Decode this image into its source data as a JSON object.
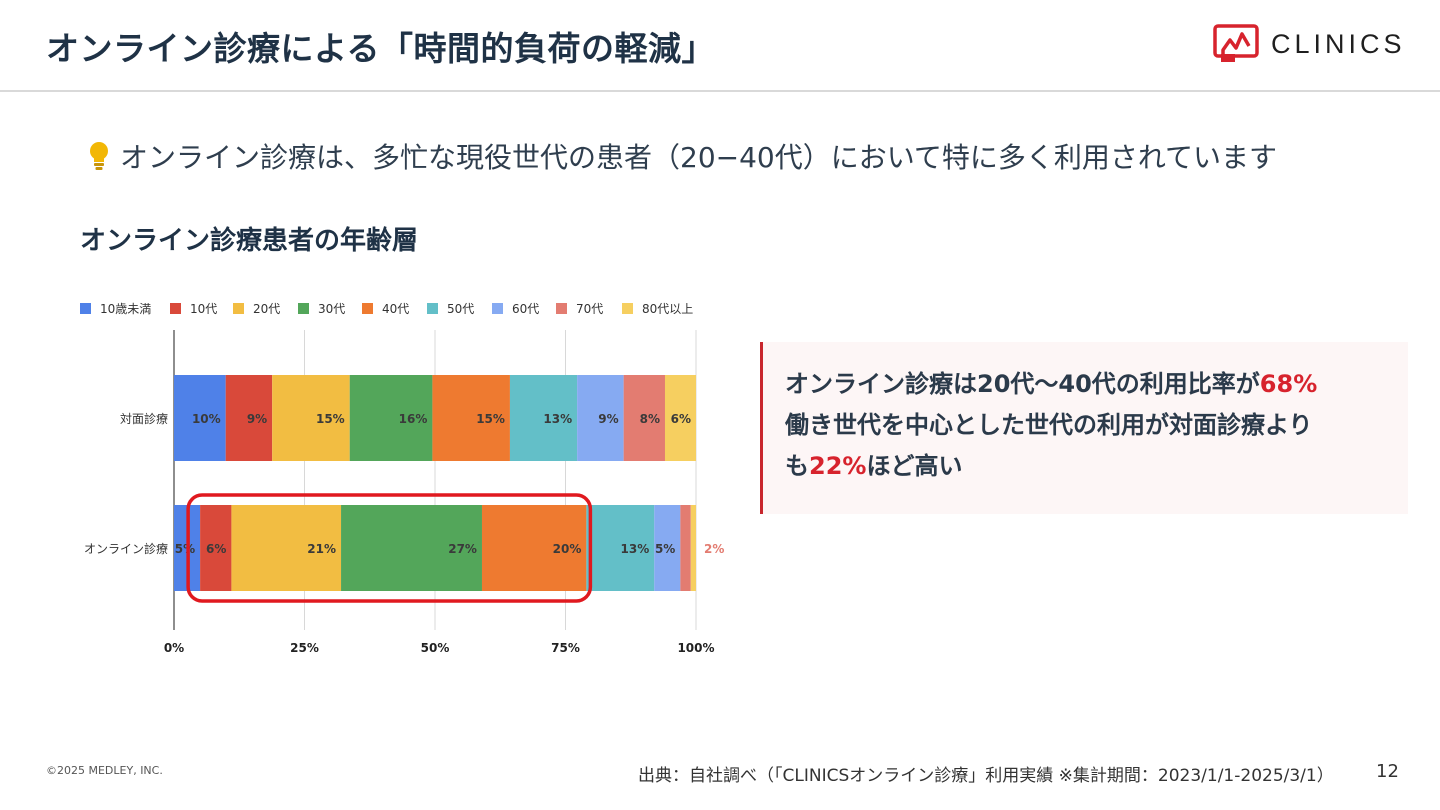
{
  "header": {
    "title": "オンライン診療による「時間的負荷の軽減」",
    "logo_text": "CLINICS",
    "accent_color": "#d7232d"
  },
  "lead": {
    "icon": "lightbulb-icon",
    "text": "オンライン診療は、多忙な現役世代の患者（20−40代）において特に多く利用されています"
  },
  "chart_title": "オンライン診療患者の年齢層",
  "chart_data": {
    "type": "bar",
    "orientation": "horizontal",
    "stacked": true,
    "categories": [
      "対面診療",
      "オンライン診療"
    ],
    "series": [
      {
        "name": "10歳未満",
        "color": "#4f81e8",
        "values": [
          10,
          5
        ],
        "labels": [
          "10%",
          "5%"
        ]
      },
      {
        "name": "10代",
        "color": "#d9493a",
        "values": [
          9,
          6
        ],
        "labels": [
          "9%",
          "6%"
        ]
      },
      {
        "name": "20代",
        "color": "#f2bd42",
        "values": [
          15,
          21
        ],
        "labels": [
          "15%",
          "21%"
        ]
      },
      {
        "name": "30代",
        "color": "#53a65a",
        "values": [
          16,
          27
        ],
        "labels": [
          "16%",
          "27%"
        ]
      },
      {
        "name": "40代",
        "color": "#ee7a30",
        "values": [
          15,
          20
        ],
        "labels": [
          "15%",
          "20%"
        ]
      },
      {
        "name": "50代",
        "color": "#63bfc8",
        "values": [
          13,
          13
        ],
        "labels": [
          "13%",
          "13%"
        ]
      },
      {
        "name": "60代",
        "color": "#86aaf2",
        "values": [
          9,
          5
        ],
        "labels": [
          "9%",
          "5%"
        ]
      },
      {
        "name": "70代",
        "color": "#e37c71",
        "values": [
          8,
          2
        ],
        "labels": [
          "8%",
          ""
        ]
      },
      {
        "name": "80代以上",
        "color": "#f6cf60",
        "values": [
          6,
          1
        ],
        "labels": [
          "6%",
          ""
        ]
      }
    ],
    "outside_labels": [
      "",
      "2%"
    ],
    "x_ticks": [
      "0%",
      "25%",
      "50%",
      "75%",
      "100%"
    ],
    "xlim": [
      0,
      100
    ],
    "legend_position": "top",
    "grid": true,
    "highlight": {
      "category": "オンライン診療",
      "from_series": "10代",
      "to_series": "40代",
      "color": "#e0191f"
    }
  },
  "callout": {
    "line1_prefix": "オンライン診療は20代〜40代の利用比率が",
    "line1_highlight": "68%",
    "line2": "働き世代を中心とした世代の利用が対面診療より",
    "line3_prefix": "も",
    "line3_highlight": "22%",
    "line3_suffix": "ほど高い"
  },
  "footer": {
    "copyright": "©2025 MEDLEY, INC.",
    "source": "出典：自社調べ（「CLINICSオンライン診療」利用実績 ※集計期間：2023/1/1-2025/3/1）",
    "page_number": "12"
  }
}
